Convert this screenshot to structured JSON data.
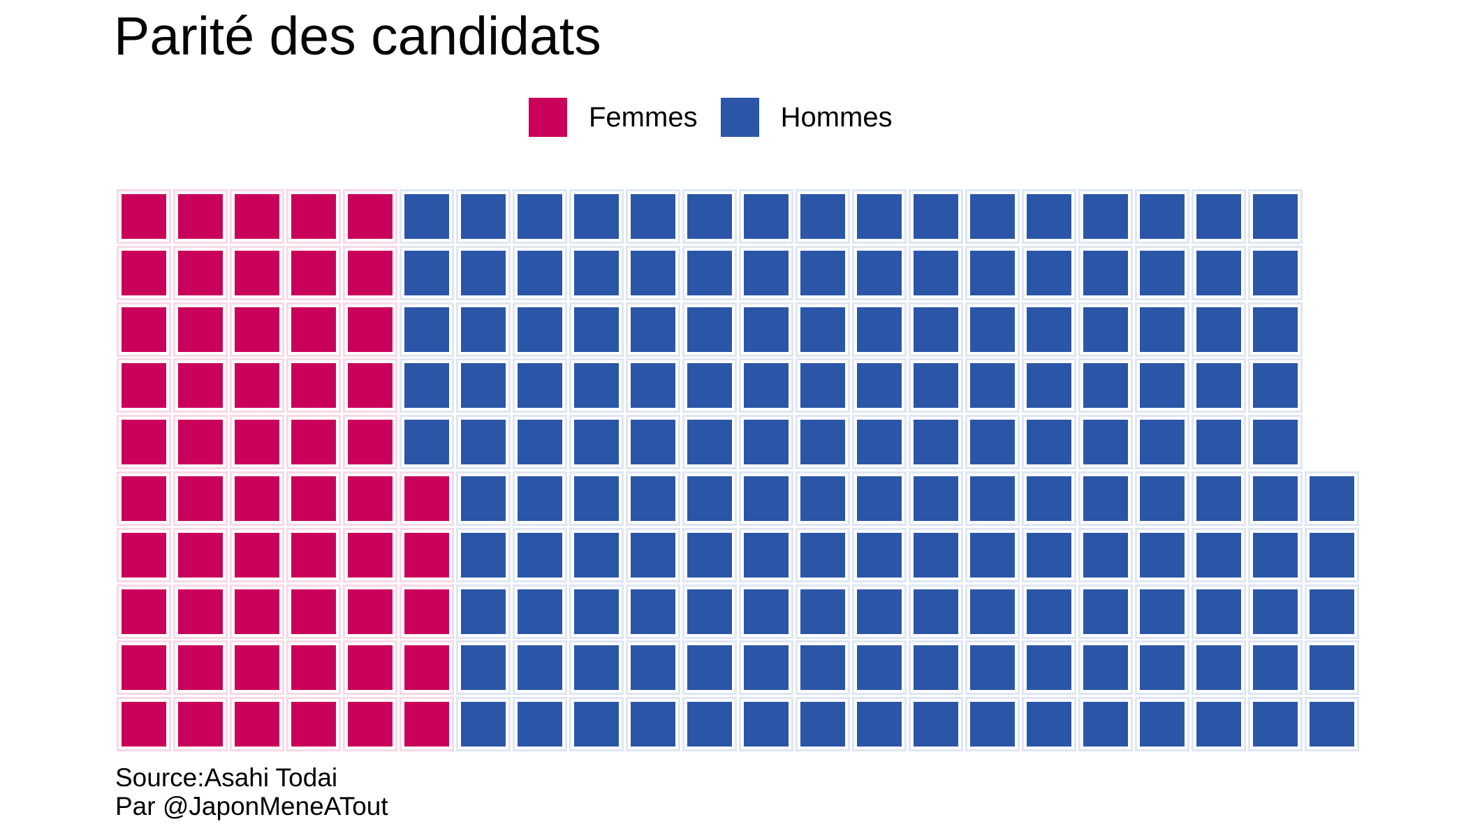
{
  "title": "Parité des candidats",
  "legend": {
    "items": [
      {
        "label": "Femmes",
        "color": "#CA015A"
      },
      {
        "label": "Hommes",
        "color": "#2B56A7"
      }
    ]
  },
  "source": {
    "line1": "Source:Asahi Todai",
    "line2": "Par @JaponMeneATout"
  },
  "chart_data": {
    "type": "waffle",
    "title": "Parité des candidats",
    "categories": [
      "Femmes",
      "Hommes"
    ],
    "values": [
      55,
      160
    ],
    "colors": [
      "#CA015A",
      "#2B56A7"
    ],
    "total_squares": 215,
    "rows": 10,
    "full_columns": 21,
    "partial_column_squares": 5,
    "fill_order": "column-by-column, bottom-to-top, left-to-right",
    "legend_position": "top-center",
    "background": "#ffffff",
    "row_pattern": [
      {
        "femmes": 5,
        "hommes": 16
      },
      {
        "femmes": 5,
        "hommes": 16
      },
      {
        "femmes": 5,
        "hommes": 16
      },
      {
        "femmes": 5,
        "hommes": 16
      },
      {
        "femmes": 5,
        "hommes": 16
      },
      {
        "femmes": 6,
        "hommes": 16
      },
      {
        "femmes": 6,
        "hommes": 16
      },
      {
        "femmes": 6,
        "hommes": 16
      },
      {
        "femmes": 6,
        "hommes": 16
      },
      {
        "femmes": 6,
        "hommes": 16
      }
    ]
  }
}
